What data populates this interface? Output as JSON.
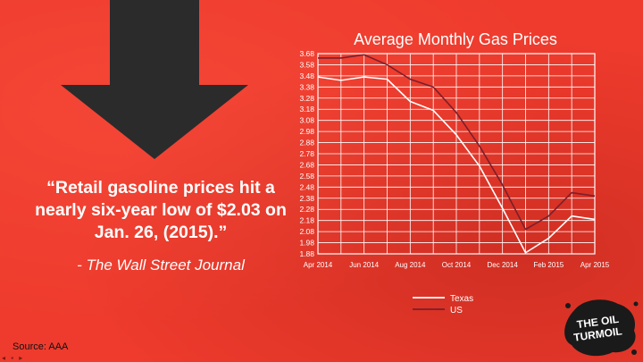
{
  "quote": {
    "line1": "“Retail gasoline prices hit a",
    "line2": "nearly six-year low of $2.03 on",
    "line3": "Jan. 26, (2015).”",
    "attribution": "- The Wall Street Journal"
  },
  "source": "Source: AAA",
  "logo": {
    "line1": "THE OIL",
    "line2": "TURMOIL",
    "icon": "oil-splat-logo"
  },
  "colors": {
    "background": "#ee3b2d",
    "arrow": "#2b2b2b",
    "texas": "#ffffff",
    "us": "#7a1f2a"
  },
  "chart_data": {
    "type": "line",
    "title": "Average Monthly Gas Prices",
    "xlabel": "",
    "ylabel": "",
    "categories": [
      "Apr 2014",
      "May 2014",
      "Jun 2014",
      "Jul 2014",
      "Aug 2014",
      "Sep 2014",
      "Oct 2014",
      "Nov 2014",
      "Dec 2014",
      "Jan 2015",
      "Feb 2015",
      "Mar 2015",
      "Apr 2015"
    ],
    "x_tick_labels": [
      "Apr 2014",
      "Jun 2014",
      "Aug 2014",
      "Oct 2014",
      "Dec 2014",
      "Feb 2015",
      "Apr 2015"
    ],
    "y_ticks": [
      1.88,
      1.98,
      2.08,
      2.18,
      2.28,
      2.38,
      2.48,
      2.58,
      2.68,
      2.78,
      2.88,
      2.98,
      3.08,
      3.18,
      3.28,
      3.38,
      3.48,
      3.58,
      3.68
    ],
    "ylim": [
      1.88,
      3.68
    ],
    "grid": true,
    "legend_position": "bottom",
    "series": [
      {
        "name": "Texas",
        "values": [
          3.47,
          3.44,
          3.47,
          3.45,
          3.25,
          3.17,
          2.95,
          2.67,
          2.29,
          1.89,
          2.02,
          2.22,
          2.19
        ]
      },
      {
        "name": "US",
        "values": [
          3.64,
          3.64,
          3.67,
          3.58,
          3.45,
          3.38,
          3.15,
          2.85,
          2.5,
          2.1,
          2.22,
          2.43,
          2.4
        ]
      }
    ]
  }
}
